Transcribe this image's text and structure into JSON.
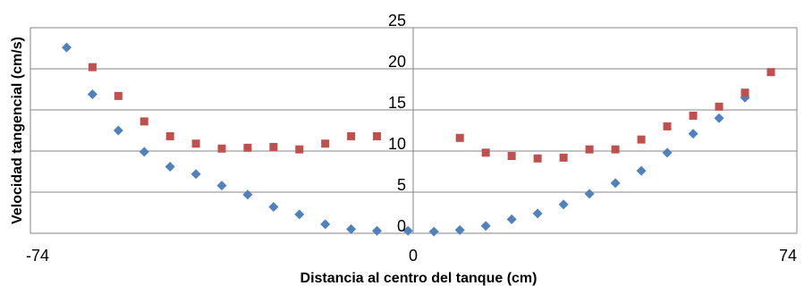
{
  "chart_data": {
    "type": "scatter",
    "title": "",
    "xlabel": "Distancia al centro del tanque (cm)",
    "ylabel": "Velocidad tangencial (cm/s)",
    "xlim": [
      -74,
      74
    ],
    "ylim": [
      0,
      25
    ],
    "x_tick_labels": [
      "-74",
      "0",
      "74"
    ],
    "y_tick_labels": [
      "0",
      "5",
      "10",
      "15",
      "20",
      "25"
    ],
    "grid": "horizontal",
    "series": [
      {
        "color": "#4f81bd",
        "marker": "diamond",
        "points": [
          [
            -67,
            22.6
          ],
          [
            -62,
            16.9
          ],
          [
            -57,
            12.5
          ],
          [
            -52,
            9.9
          ],
          [
            -47,
            8.1
          ],
          [
            -42,
            7.2
          ],
          [
            -37,
            5.8
          ],
          [
            -32,
            4.7
          ],
          [
            -27,
            3.2
          ],
          [
            -22,
            2.3
          ],
          [
            -17,
            1.1
          ],
          [
            -12,
            0.5
          ],
          [
            -7,
            0.3
          ],
          [
            -1,
            0.3
          ],
          [
            4,
            0.2
          ],
          [
            9,
            0.4
          ],
          [
            14,
            0.9
          ],
          [
            19,
            1.7
          ],
          [
            24,
            2.4
          ],
          [
            29,
            3.5
          ],
          [
            34,
            4.8
          ],
          [
            39,
            6.1
          ],
          [
            44,
            7.6
          ],
          [
            49,
            9.8
          ],
          [
            54,
            12.1
          ],
          [
            59,
            14.0
          ],
          [
            64,
            16.5
          ]
        ]
      },
      {
        "color": "#c0504d",
        "marker": "square",
        "points": [
          [
            -62,
            20.2
          ],
          [
            -57,
            16.7
          ],
          [
            -52,
            13.6
          ],
          [
            -47,
            11.8
          ],
          [
            -42,
            10.9
          ],
          [
            -37,
            10.3
          ],
          [
            -32,
            10.4
          ],
          [
            -27,
            10.5
          ],
          [
            -22,
            10.2
          ],
          [
            -17,
            10.9
          ],
          [
            -12,
            11.8
          ],
          [
            -7,
            11.8
          ],
          [
            9,
            11.6
          ],
          [
            14,
            9.8
          ],
          [
            19,
            9.4
          ],
          [
            24,
            9.1
          ],
          [
            29,
            9.2
          ],
          [
            34,
            10.2
          ],
          [
            39,
            10.2
          ],
          [
            44,
            11.4
          ],
          [
            49,
            13.0
          ],
          [
            54,
            14.3
          ],
          [
            59,
            15.4
          ],
          [
            64,
            17.1
          ],
          [
            69,
            19.6
          ]
        ]
      }
    ]
  }
}
